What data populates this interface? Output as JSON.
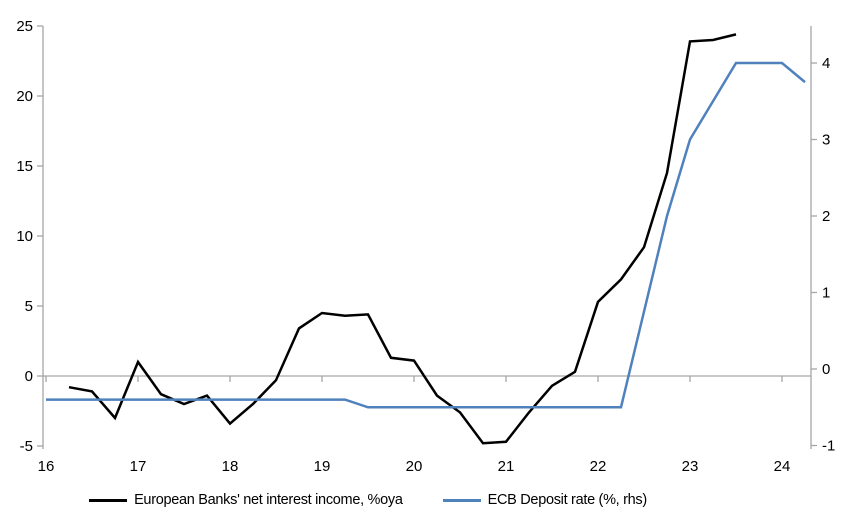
{
  "chart_data": {
    "type": "line",
    "title": "",
    "grid": "zero-line-only",
    "legend_position": "bottom-center",
    "axis_color": "#A6A6A6",
    "background_color": "#FFFFFF",
    "x_axis": {
      "tick_labels": [
        16,
        17,
        18,
        19,
        20,
        21,
        22,
        23,
        24
      ]
    },
    "left_axis": {
      "tick_labels": [
        25,
        20,
        15,
        10,
        5,
        0,
        -5
      ],
      "min": -5,
      "max": 25
    },
    "right_axis": {
      "tick_labels": [
        4,
        3,
        2,
        1,
        0,
        -1
      ],
      "min": -1,
      "max": 4.5
    },
    "series": [
      {
        "id": "nii",
        "name": "European Banks' net interest income, %oya",
        "axis": "left",
        "color": "#000000",
        "x": [
          16.25,
          16.5,
          16.75,
          17.0,
          17.25,
          17.5,
          17.75,
          18.0,
          18.25,
          18.5,
          18.75,
          19.0,
          19.25,
          19.5,
          19.75,
          20.0,
          20.25,
          20.5,
          20.75,
          21.0,
          21.25,
          21.5,
          21.75,
          22.0,
          22.25,
          22.5,
          22.75,
          23.0,
          23.25,
          23.5
        ],
        "values": [
          -0.8,
          -1.1,
          -3.0,
          1.0,
          -1.3,
          -2.0,
          -1.4,
          -3.4,
          -2.0,
          -0.3,
          3.4,
          4.5,
          4.3,
          4.4,
          1.3,
          1.1,
          -1.4,
          -2.6,
          -4.8,
          -4.7,
          -2.6,
          -0.7,
          0.3,
          5.3,
          6.9,
          9.2,
          14.5,
          23.9,
          24.0,
          24.4
        ]
      },
      {
        "id": "ecb-deposit-rate",
        "name": "ECB Deposit rate (%, rhs)",
        "axis": "right",
        "color": "#4F81BD",
        "x": [
          16.0,
          16.25,
          16.5,
          16.75,
          17.0,
          17.25,
          17.5,
          17.75,
          18.0,
          18.25,
          18.5,
          18.75,
          19.0,
          19.25,
          19.5,
          19.75,
          20.0,
          20.25,
          20.5,
          20.75,
          21.0,
          21.25,
          21.5,
          21.75,
          22.0,
          22.25,
          22.5,
          22.75,
          23.0,
          23.25,
          23.5,
          23.75,
          24.0,
          24.25
        ],
        "values": [
          -0.4,
          -0.4,
          -0.4,
          -0.4,
          -0.4,
          -0.4,
          -0.4,
          -0.4,
          -0.4,
          -0.4,
          -0.4,
          -0.4,
          -0.4,
          -0.4,
          -0.5,
          -0.5,
          -0.5,
          -0.5,
          -0.5,
          -0.5,
          -0.5,
          -0.5,
          -0.5,
          -0.5,
          -0.5,
          -0.5,
          0.75,
          2.0,
          3.0,
          3.5,
          4.0,
          4.0,
          4.0,
          3.75
        ]
      }
    ]
  }
}
